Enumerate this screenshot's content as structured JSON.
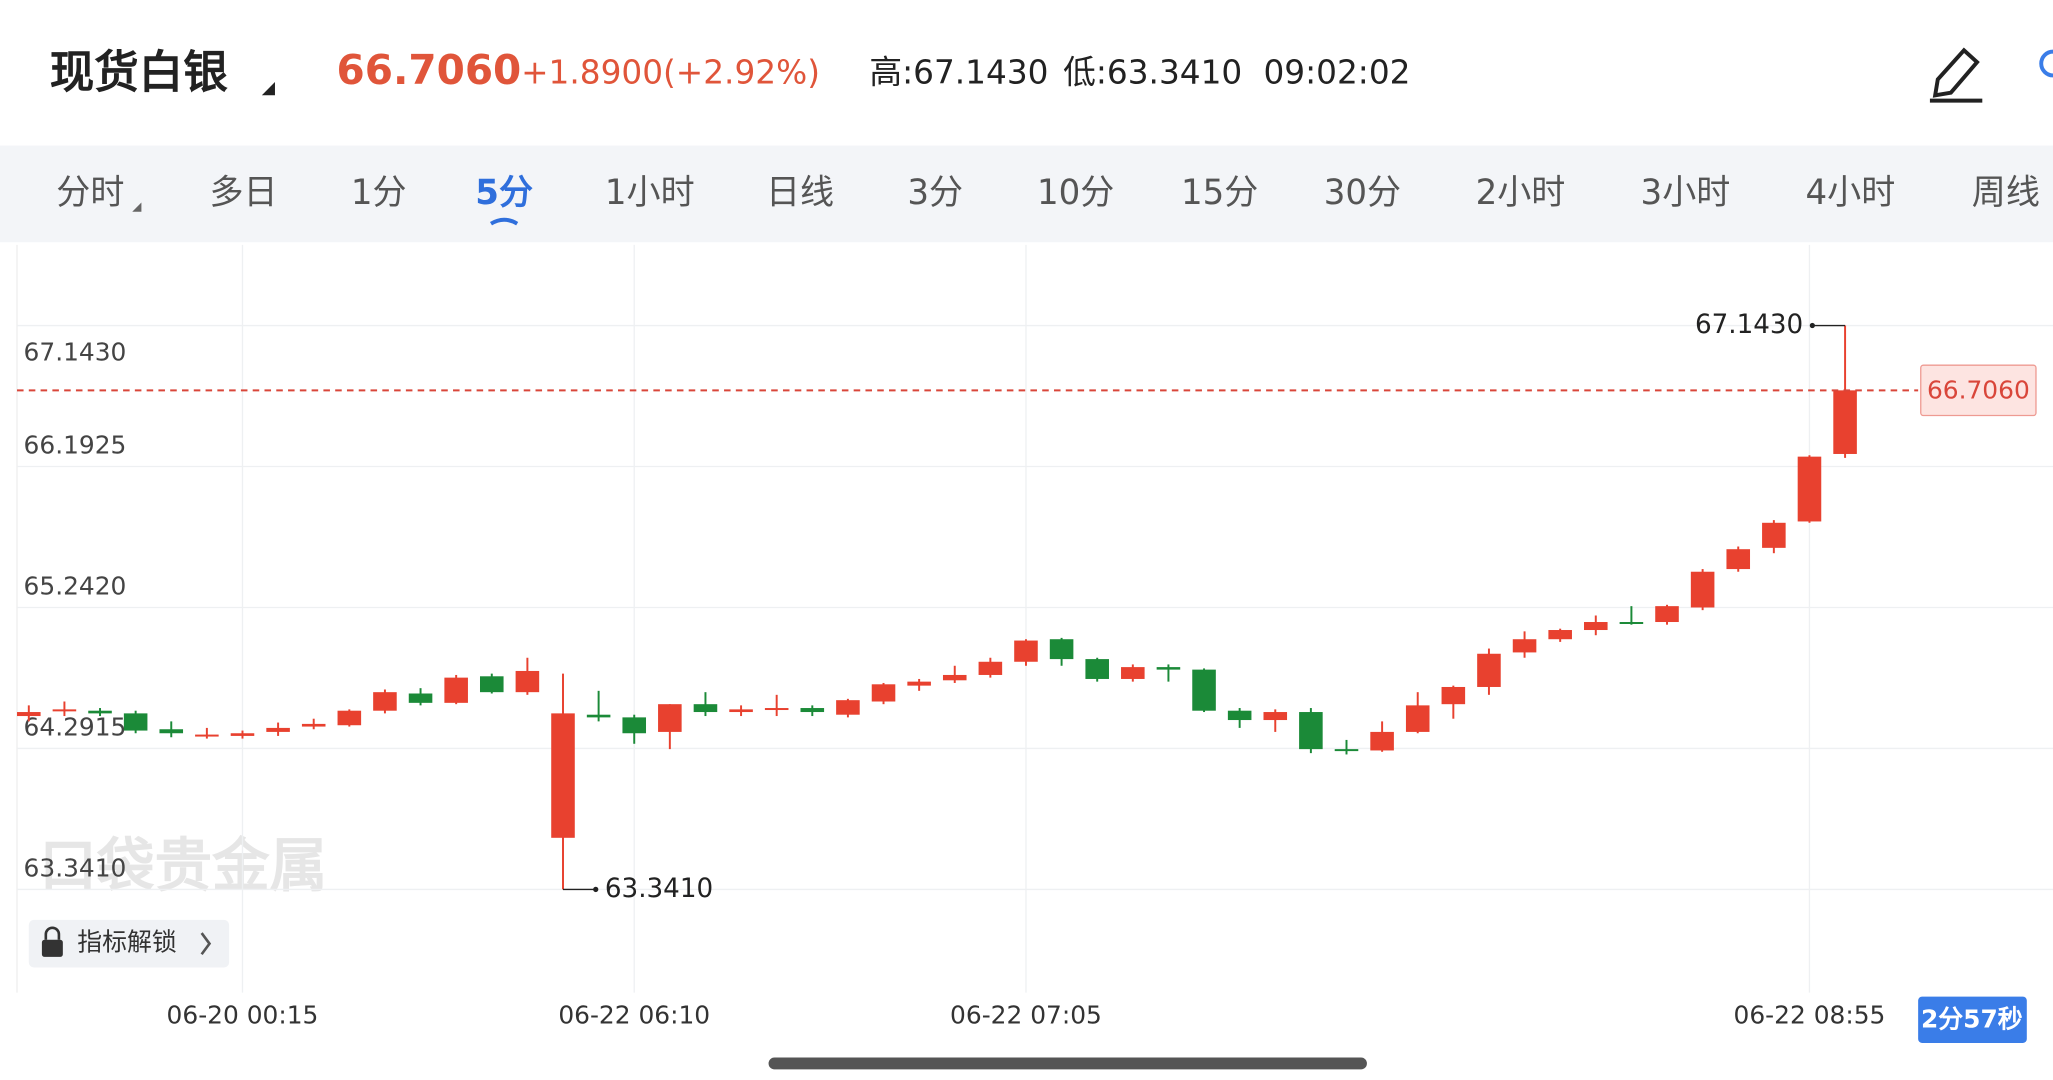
{
  "header": {
    "symbol": "现货白银",
    "price": "66.7060",
    "change": "+1.8900(+2.92%)",
    "high": "高:67.1430",
    "low": "低:63.3410",
    "time": "09:02:02"
  },
  "tabs": {
    "items": [
      "分时",
      "多日",
      "1分",
      "5分",
      "1小时",
      "日线",
      "3分",
      "10分",
      "15分",
      "30分",
      "2小时",
      "3小时",
      "4小时",
      "周线"
    ],
    "active": 3
  },
  "chart_data": {
    "type": "candlestick",
    "categories": [
      null,
      null,
      null,
      null,
      null,
      null,
      "06-20 00:15",
      null,
      null,
      null,
      null,
      null,
      null,
      null,
      null,
      null,
      null,
      "06-22 06:10",
      null,
      null,
      null,
      null,
      null,
      null,
      null,
      null,
      null,
      null,
      "06-22 07:05",
      null,
      null,
      null,
      null,
      null,
      null,
      null,
      null,
      null,
      null,
      null,
      null,
      null,
      null,
      null,
      null,
      null,
      null,
      null,
      null,
      null,
      "06-22 08:55",
      null
    ],
    "open": [
      64.51,
      64.546,
      64.546,
      64.528,
      64.421,
      64.376,
      64.376,
      64.403,
      64.439,
      64.448,
      64.546,
      64.662,
      64.599,
      64.778,
      64.671,
      63.689,
      64.519,
      64.501,
      64.403,
      64.59,
      64.537,
      64.555,
      64.564,
      64.519,
      64.608,
      64.715,
      64.751,
      64.787,
      64.876,
      65.028,
      64.894,
      64.76,
      64.84,
      64.823,
      64.546,
      64.483,
      64.537,
      64.287,
      64.278,
      64.403,
      64.59,
      64.706,
      64.939,
      65.028,
      65.09,
      65.144,
      65.144,
      65.242,
      65.501,
      65.644,
      65.822,
      66.277
    ],
    "high": [
      64.582,
      64.608,
      64.564,
      64.546,
      64.474,
      64.43,
      64.412,
      64.466,
      64.492,
      64.555,
      64.689,
      64.698,
      64.787,
      64.796,
      64.903,
      64.796,
      64.68,
      64.519,
      64.59,
      64.671,
      64.582,
      64.653,
      64.582,
      64.626,
      64.733,
      64.76,
      64.849,
      64.903,
      65.028,
      65.037,
      64.903,
      64.858,
      64.858,
      64.831,
      64.564,
      64.555,
      64.564,
      64.349,
      64.474,
      64.671,
      64.715,
      64.965,
      65.081,
      65.099,
      65.188,
      65.251,
      65.26,
      65.501,
      65.653,
      65.831,
      66.268,
      67.143
    ],
    "low": [
      64.474,
      64.51,
      64.51,
      64.394,
      64.367,
      64.358,
      64.358,
      64.376,
      64.421,
      64.439,
      64.528,
      64.582,
      64.59,
      64.662,
      64.653,
      63.341,
      64.474,
      64.323,
      64.287,
      64.51,
      64.51,
      64.51,
      64.51,
      64.501,
      64.59,
      64.68,
      64.733,
      64.769,
      64.849,
      64.849,
      64.742,
      64.742,
      64.742,
      64.537,
      64.43,
      64.403,
      64.26,
      64.251,
      64.269,
      64.394,
      64.492,
      64.653,
      64.903,
      65.01,
      65.055,
      65.126,
      65.126,
      65.224,
      65.483,
      65.608,
      65.813,
      66.251
    ],
    "close": [
      64.537,
      64.555,
      64.528,
      64.412,
      64.394,
      64.385,
      64.394,
      64.43,
      64.457,
      64.546,
      64.671,
      64.599,
      64.769,
      64.671,
      64.814,
      64.528,
      64.501,
      64.394,
      64.59,
      64.537,
      64.555,
      64.564,
      64.537,
      64.617,
      64.724,
      64.742,
      64.787,
      64.876,
      65.019,
      64.894,
      64.76,
      64.84,
      64.823,
      64.546,
      64.483,
      64.537,
      64.287,
      64.278,
      64.403,
      64.582,
      64.706,
      64.93,
      65.028,
      65.09,
      65.144,
      65.135,
      65.251,
      65.483,
      65.635,
      65.813,
      66.259,
      66.706
    ],
    "up_color": "#e8412f",
    "down_color": "#1b8a38",
    "ylim": [
      62.645,
      67.687
    ],
    "yticks": [
      {
        "value": 63.341,
        "label": "63.3410"
      },
      {
        "value": 64.2915,
        "label": "64.2915"
      },
      {
        "value": 65.242,
        "label": "65.2420"
      },
      {
        "value": 66.1925,
        "label": "66.1925"
      },
      {
        "value": 67.143,
        "label": "67.1430"
      }
    ],
    "grid": true,
    "current": {
      "value": 66.706,
      "label": "66.7060"
    },
    "max_marker": {
      "value": 67.143,
      "label": "67.1430"
    },
    "min_marker": {
      "value": 63.341,
      "label": "63.3410"
    }
  },
  "watermark": "口袋贵金属",
  "indicator_button": "指标解锁",
  "countdown": "2分57秒"
}
